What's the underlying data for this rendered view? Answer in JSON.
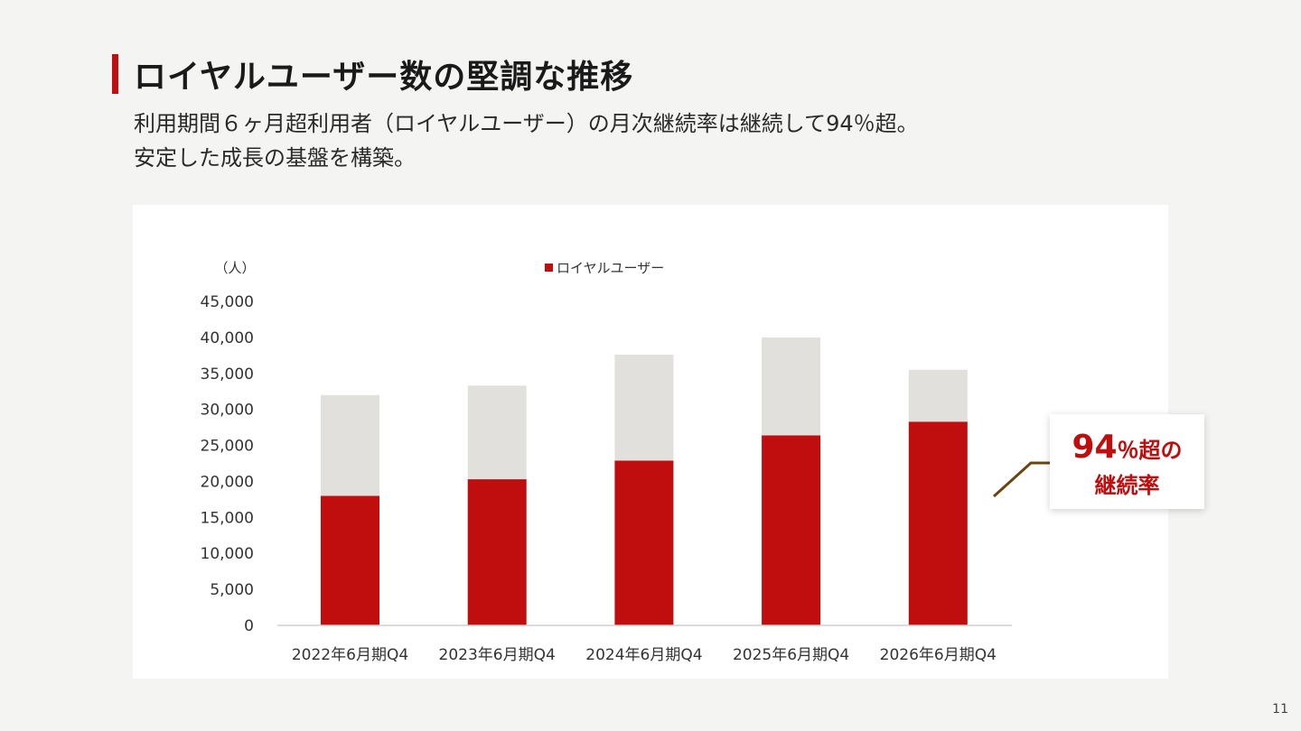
{
  "title": "ロイヤルユーザー数の堅調な推移",
  "subtitle": {
    "line1": "利用期間６ヶ月超利用者（ロイヤルユーザー）の月次継続率は継続して94％超。",
    "line2": "安定した成長の基盤を構築。"
  },
  "callout": {
    "big": "94",
    "rest": "％超の",
    "line2": "継続率"
  },
  "page_number": "11",
  "colors": {
    "royal": "#c00d0d",
    "other": "#e1e0dd",
    "connector": "#6b4410"
  },
  "chart_data": {
    "type": "bar",
    "stacked": true,
    "unit_label": "（人）",
    "categories": [
      "2022年6月期Q4",
      "2023年6月期Q4",
      "2024年6月期Q4",
      "2025年6月期Q4",
      "2026年6月期Q4"
    ],
    "series": [
      {
        "name": "ロイヤルユーザー",
        "color": "#c00d0d",
        "values": [
          18000,
          20300,
          22900,
          26400,
          28300
        ]
      },
      {
        "color": "#e1e0dd",
        "values": [
          14000,
          13000,
          14700,
          13600,
          7200
        ]
      }
    ],
    "y_ticks": [
      "0",
      "5,000",
      "10,000",
      "15,000",
      "20,000",
      "25,000",
      "30,000",
      "35,000",
      "40,000",
      "45,000"
    ],
    "ylim": [
      0,
      45000
    ],
    "legend_position": "top"
  }
}
